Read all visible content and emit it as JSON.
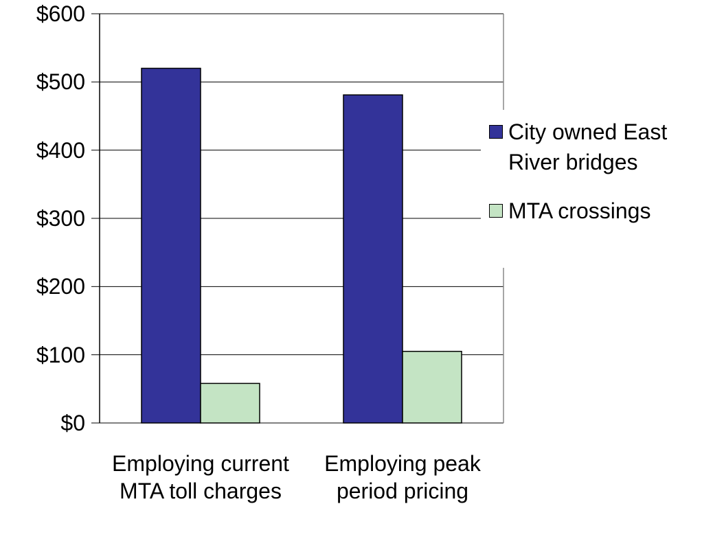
{
  "chart_data": {
    "type": "bar",
    "categories": [
      "Employing current MTA toll charges",
      "Employing peak period pricing"
    ],
    "series": [
      {
        "name": "City owned East River bridges",
        "color": "#333399",
        "values": [
          520,
          481
        ]
      },
      {
        "name": "MTA crossings",
        "color": "#c4e4c4",
        "values": [
          58,
          105
        ]
      }
    ],
    "ylim": [
      0,
      600
    ],
    "yticks": [
      {
        "value": 0,
        "label": "$0"
      },
      {
        "value": 100,
        "label": "$100"
      },
      {
        "value": 200,
        "label": "$200"
      },
      {
        "value": 300,
        "label": "$300"
      },
      {
        "value": 400,
        "label": "$400"
      },
      {
        "value": 500,
        "label": "$500"
      },
      {
        "value": 600,
        "label": "$600"
      }
    ],
    "grid": true,
    "legend": "right"
  }
}
